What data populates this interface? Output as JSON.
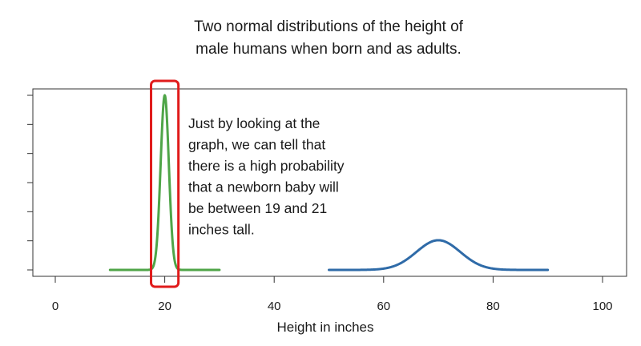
{
  "chart_data": {
    "type": "line",
    "title_lines": [
      "Two normal distributions of the height of",
      "male humans when born and as adults."
    ],
    "xlabel": "Height in inches",
    "ylabel": "",
    "xlim": [
      0,
      100
    ],
    "ylim": [
      0,
      1
    ],
    "x_ticks": [
      0,
      20,
      40,
      60,
      80,
      100
    ],
    "y_tick_count": 7,
    "grid": false,
    "series": [
      {
        "mean": 20,
        "sd": 0.75,
        "x_range": [
          10,
          30
        ],
        "color": "#4fa548"
      },
      {
        "mean": 70,
        "sd": 4.0,
        "x_range": [
          50,
          90
        ],
        "peak_fraction": 0.17,
        "color": "#2f6ba8"
      }
    ],
    "highlight": {
      "x_range": [
        17.5,
        22.5
      ],
      "color": "#e01b1b"
    },
    "annotation_lines": [
      "Just by looking at the",
      "graph, we can tell that",
      "there is a high probability",
      "that a newborn baby will",
      "be between 19 and 21",
      "inches tall."
    ]
  }
}
